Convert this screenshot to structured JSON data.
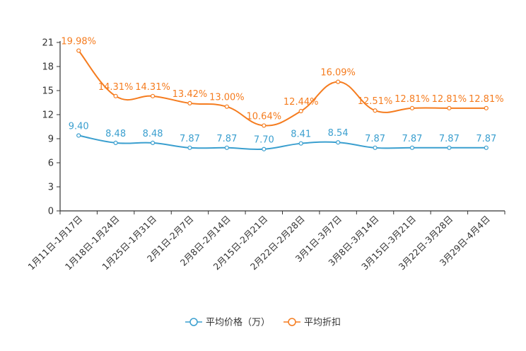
{
  "chart_data": {
    "type": "line",
    "title": "",
    "xlabel": "",
    "ylabel": "",
    "ylim": [
      0,
      21
    ],
    "yticks": [
      0,
      3,
      6,
      9,
      12,
      15,
      18,
      21
    ],
    "categories": [
      "1月11日-1月17日",
      "1月18日-1月24日",
      "1月25日-1月31日",
      "2月1日-2月7日",
      "2月8日-2月14日",
      "2月15日-2月21日",
      "2月22日-2月28日",
      "3月1日-3月7日",
      "3月8日-3月14日",
      "3月15日-3月21日",
      "3月22日-3月28日",
      "3月29日-4月4日"
    ],
    "series": [
      {
        "name": "平均价格（万）",
        "color": "#3a9fcf",
        "values": [
          9.4,
          8.48,
          8.48,
          7.87,
          7.87,
          7.7,
          8.41,
          8.54,
          7.87,
          7.87,
          7.87,
          7.87
        ],
        "labels": [
          "9.40",
          "8.48",
          "8.48",
          "7.87",
          "7.87",
          "7.70",
          "8.41",
          "8.54",
          "7.87",
          "7.87",
          "7.87",
          "7.87"
        ]
      },
      {
        "name": "平均折扣",
        "color": "#f57c1f",
        "values": [
          19.98,
          14.31,
          14.31,
          13.42,
          13.0,
          10.64,
          12.44,
          16.09,
          12.51,
          12.81,
          12.81,
          12.81
        ],
        "labels": [
          "19.98%",
          "14.31%",
          "14.31%",
          "13.42%",
          "13.00%",
          "10.64%",
          "12.44%",
          "16.09%",
          "12.51%",
          "12.81%",
          "12.81%",
          "12.81%"
        ]
      }
    ],
    "legend_position": "bottom-center",
    "grid": false
  }
}
